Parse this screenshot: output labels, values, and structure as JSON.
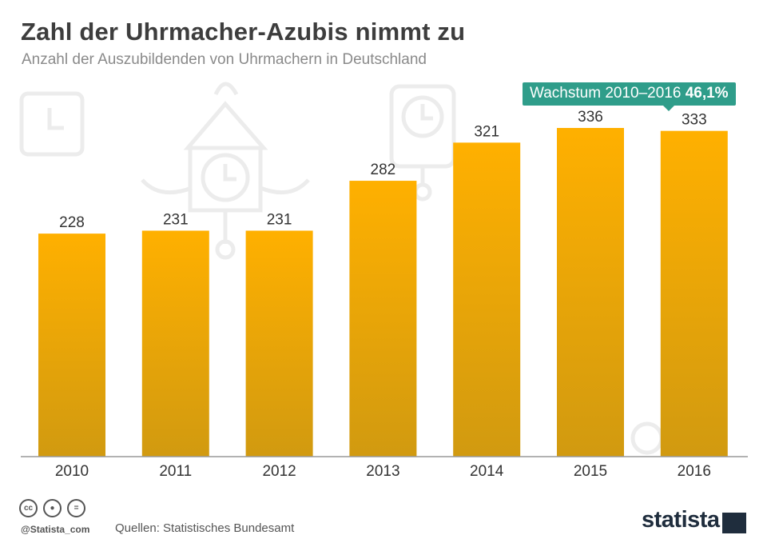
{
  "header": {
    "title": "Zahl der Uhrmacher-Azubis nimmt zu",
    "subtitle": "Anzahl der Auszubildenden von Uhrmachern in Deutschland"
  },
  "callout": {
    "label": "Wachstum 2010–2016",
    "value": "46,1%",
    "color": "#2f9d8a"
  },
  "chart_data": {
    "type": "bar",
    "categories": [
      "2010",
      "2011",
      "2012",
      "2013",
      "2014",
      "2015",
      "2016"
    ],
    "values": [
      228,
      231,
      231,
      282,
      321,
      336,
      333
    ],
    "title": "Zahl der Uhrmacher-Azubis nimmt zu",
    "subtitle": "Anzahl der Auszubildenden von Uhrmachern in Deutschland",
    "xlabel": "",
    "ylabel": "",
    "ylim": [
      0,
      336
    ],
    "grid": false,
    "data_labels": true,
    "colors": {
      "bar_top": "#ffb000",
      "bar_bottom": "#d19a10",
      "axis": "#999999"
    }
  },
  "footer": {
    "handle": "@Statista_com",
    "source": "Quellen: Statistisches Bundesamt",
    "brand": "statista",
    "license_icons": [
      "cc-icon",
      "by-icon",
      "nd-icon"
    ]
  }
}
